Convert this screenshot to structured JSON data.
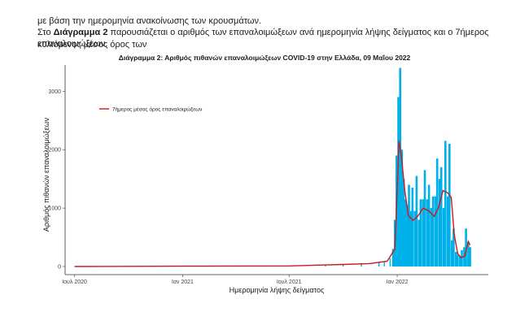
{
  "doc": {
    "line1": "με βάση την ημερομηνία ανακοίνωσης των κρουσμάτων.",
    "p2_prefix": "Στο ",
    "p2_bold": "Διάγραμμα 2",
    "p2_rest_line1": " παρουσιάζεται ο αριθμός των επαναλοιμώξεων ανά ημερομηνία λήψης δείγματος και ο 7ήμερος κυλιόμενος μέσος όρος των",
    "p2_line2": "επαναλοιμώξεων."
  },
  "chart_data": {
    "type": "bar",
    "title": "Διάγραμμα 2: Αριθμός πιθανών επαναλοιμώξεων COVID-19 στην Ελλάδα, 09 Μαΐου 2022",
    "xlabel": "Ημερομηνία λήψης δείγματος",
    "ylabel": "Αριθμός πιθανών επαναλοιμώξεων",
    "x_ticks": [
      "Ιουλ 2020",
      "Ιαν 2021",
      "Ιουλ 2021",
      "Ιαν 2022"
    ],
    "y_ticks": [
      "0",
      "1000",
      "2000",
      "3000"
    ],
    "ylim": [
      0,
      3450
    ],
    "legend": {
      "label": "7ήμερος μέσος όρος επαναλοιμώξεων",
      "position": "top-left"
    },
    "colors": {
      "bars": "#00b0e8",
      "line": "#cc1a1a",
      "axis": "#333333"
    },
    "series": [
      {
        "kind": "bar",
        "x": [
          "2020-07-01",
          "2020-10-01",
          "2021-01-01",
          "2021-04-01",
          "2021-07-01",
          "2021-09-01",
          "2021-10-01",
          "2021-11-01",
          "2021-12-01",
          "2021-12-10",
          "2021-12-20",
          "2021-12-25",
          "2021-12-28",
          "2021-12-31",
          "2022-01-03",
          "2022-01-06",
          "2022-01-09",
          "2022-01-12",
          "2022-01-15",
          "2022-01-18",
          "2022-01-21",
          "2022-01-24",
          "2022-01-27",
          "2022-01-31",
          "2022-02-03",
          "2022-02-07",
          "2022-02-10",
          "2022-02-14",
          "2022-02-17",
          "2022-02-21",
          "2022-02-24",
          "2022-02-28",
          "2022-03-03",
          "2022-03-07",
          "2022-03-10",
          "2022-03-14",
          "2022-03-17",
          "2022-03-21",
          "2022-03-24",
          "2022-03-28",
          "2022-03-31",
          "2022-04-04",
          "2022-04-07",
          "2022-04-11",
          "2022-04-14",
          "2022-04-18",
          "2022-04-21",
          "2022-04-25",
          "2022-04-28",
          "2022-05-02",
          "2022-05-05"
        ],
        "values": [
          0,
          2,
          8,
          10,
          12,
          30,
          40,
          60,
          80,
          90,
          140,
          300,
          800,
          1900,
          2900,
          3400,
          2000,
          1500,
          1150,
          1050,
          1400,
          950,
          1350,
          950,
          1550,
          800,
          1150,
          1150,
          1650,
          1150,
          1400,
          1000,
          1200,
          1200,
          1850,
          1500,
          1700,
          1000,
          2150,
          1200,
          2100,
          450,
          650,
          250,
          200,
          180,
          280,
          330,
          650,
          420,
          330
        ]
      },
      {
        "kind": "line",
        "name": "7ήμερος μέσος όρος επαναλοιμώξεων",
        "x": [
          "2020-07-01",
          "2021-01-01",
          "2021-07-01",
          "2021-10-01",
          "2021-11-15",
          "2021-12-15",
          "2021-12-28",
          "2022-01-01",
          "2022-01-04",
          "2022-01-08",
          "2022-01-14",
          "2022-01-20",
          "2022-01-28",
          "2022-02-05",
          "2022-02-14",
          "2022-02-24",
          "2022-03-05",
          "2022-03-12",
          "2022-03-20",
          "2022-03-28",
          "2022-04-03",
          "2022-04-08",
          "2022-04-14",
          "2022-04-20",
          "2022-04-26",
          "2022-05-02",
          "2022-05-05"
        ],
        "values": [
          0,
          5,
          10,
          35,
          50,
          90,
          300,
          1300,
          2150,
          1900,
          1300,
          870,
          790,
          860,
          1000,
          950,
          860,
          1000,
          1300,
          1260,
          1180,
          550,
          220,
          150,
          180,
          430,
          370
        ]
      }
    ]
  }
}
